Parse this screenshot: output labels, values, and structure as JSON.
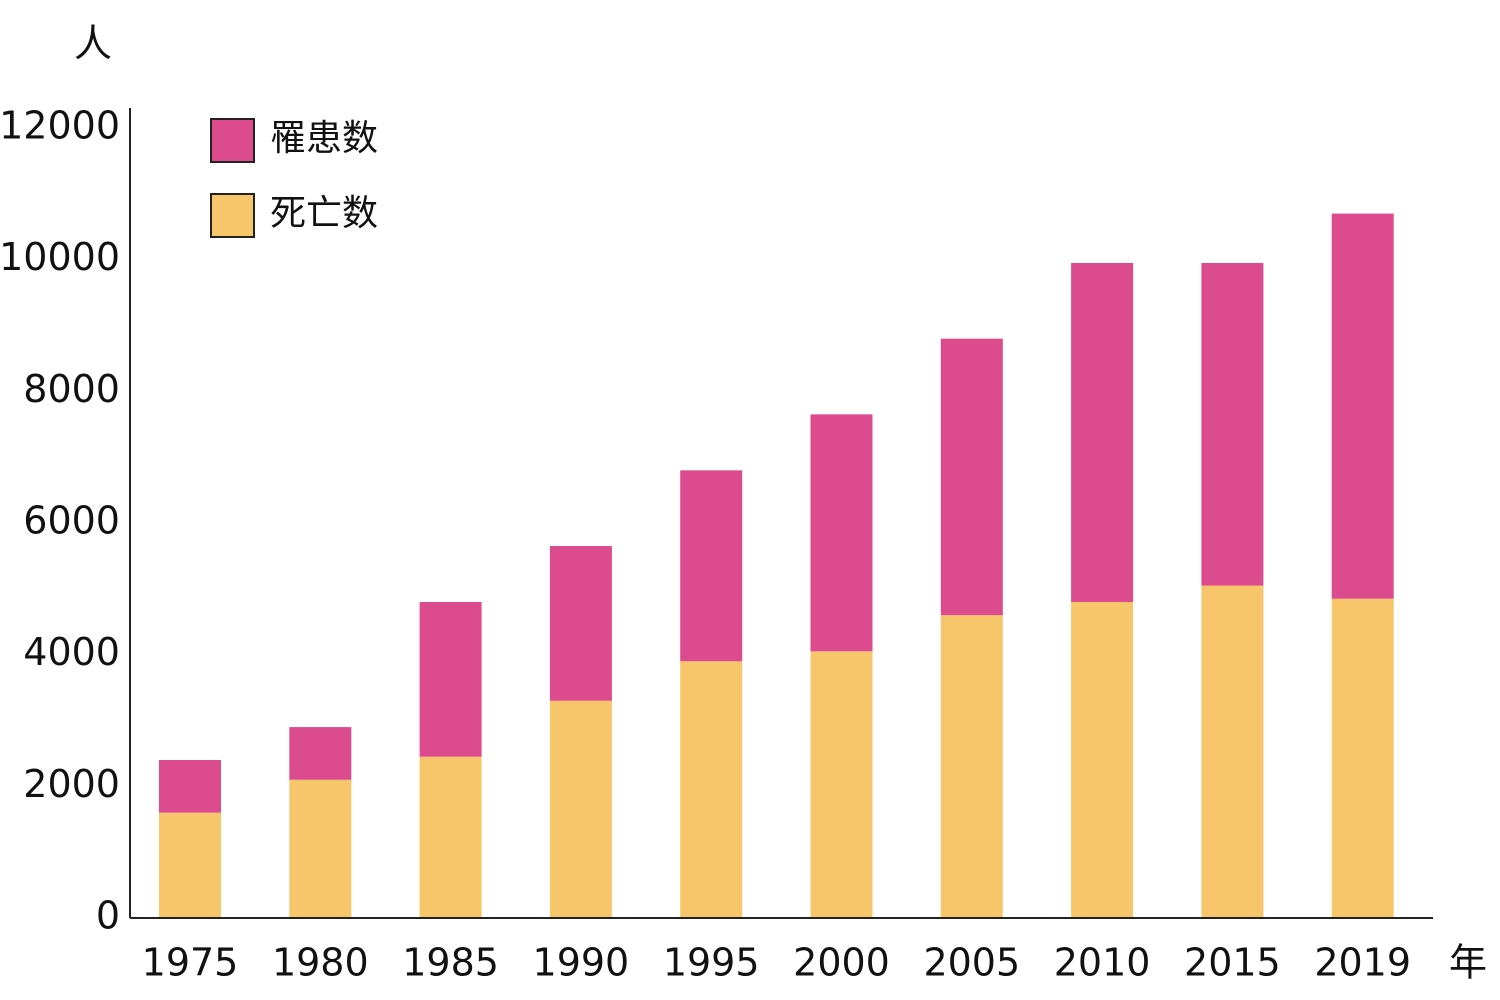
{
  "chart_data": {
    "type": "stacked_bar",
    "y_label": "人",
    "x_label": "年",
    "categories": [
      "1975",
      "1980",
      "1985",
      "1990",
      "1995",
      "2000",
      "2005",
      "2010",
      "2015",
      "2019"
    ],
    "series": [
      {
        "name": "罹患数",
        "color": "#dc4b8e",
        "values": [
          800,
          800,
          2350,
          2350,
          2900,
          3600,
          4200,
          5150,
          4900,
          5850
        ]
      },
      {
        "name": "死亡数",
        "color": "#f8c66a",
        "values": [
          1600,
          2100,
          2450,
          3300,
          3900,
          4050,
          4600,
          4800,
          5050,
          4850
        ]
      }
    ],
    "ylim": [
      0,
      12000
    ],
    "yticks": [
      0,
      2000,
      4000,
      6000,
      8000,
      10000,
      12000
    ],
    "grid": false,
    "legend": "top-left"
  }
}
